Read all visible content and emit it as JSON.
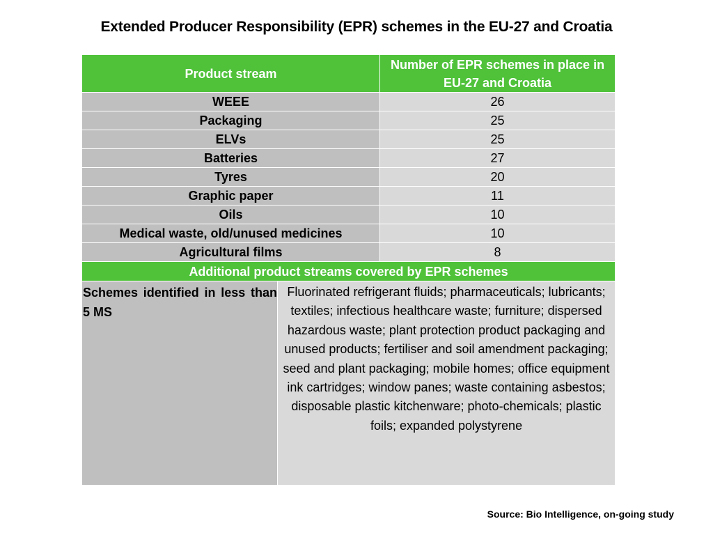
{
  "title": "Extended Producer Responsibility (EPR) schemes in the EU-27  and Croatia",
  "table": {
    "header": {
      "col1": "Product stream",
      "col2": "Number of EPR schemes in place in EU-27 and Croatia"
    },
    "rows": [
      {
        "stream": "WEEE",
        "count": "26"
      },
      {
        "stream": "Packaging",
        "count": "25"
      },
      {
        "stream": "ELVs",
        "count": "25"
      },
      {
        "stream": "Batteries",
        "count": "27"
      },
      {
        "stream": "Tyres",
        "count": "20"
      },
      {
        "stream": "Graphic paper",
        "count": "11"
      },
      {
        "stream": "Oils",
        "count": "10"
      },
      {
        "stream": "Medical waste, old/unused medicines",
        "count": "10"
      },
      {
        "stream": "Agricultural films",
        "count": "8"
      }
    ],
    "additional": {
      "header": "Additional product streams covered by EPR schemes",
      "label": "Schemes identified in less than 5 MS",
      "text": "Fluorinated refrigerant fluids; pharmaceuticals; lubricants; textiles; infectious healthcare waste; furniture; dispersed hazardous waste; plant protection product packaging and unused products;  fertiliser and soil amendment packaging; seed and plant packaging; mobile homes; office equipment ink cartridges; window panes; waste containing asbestos; disposable plastic kitchenware; photo-chemicals; plastic foils; expanded polystyrene"
    }
  },
  "source": "Source: Bio Intelligence, on-going study",
  "colors": {
    "header_green": "#4fc23a",
    "stream_gray": "#bfbfbf",
    "count_gray": "#d9d9d9"
  }
}
